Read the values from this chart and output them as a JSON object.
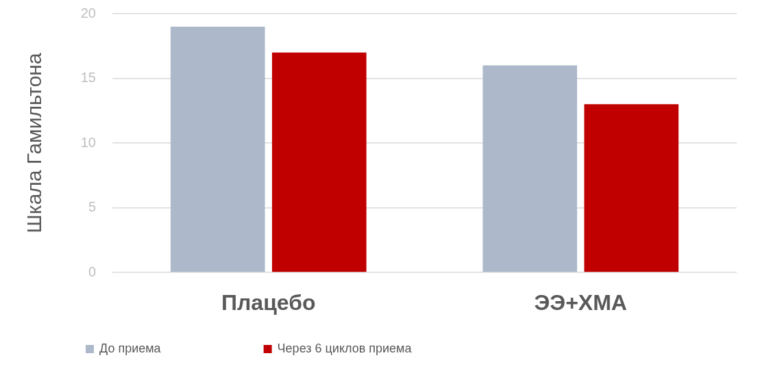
{
  "chart_data": {
    "type": "bar",
    "ylabel": "Шкала Гамильтона",
    "categories": [
      "Плацебо",
      "ЭЭ+ХМА"
    ],
    "series": [
      {
        "name": "До приема",
        "color": "#adb9ca",
        "values": [
          19,
          16
        ]
      },
      {
        "name": "Через 6 циклов приема",
        "color": "#c00000",
        "values": [
          17,
          13
        ]
      }
    ],
    "ylim": [
      0,
      20
    ],
    "yticks": [
      0,
      5,
      10,
      15,
      20
    ],
    "grid": "y",
    "legend": "bottom"
  }
}
